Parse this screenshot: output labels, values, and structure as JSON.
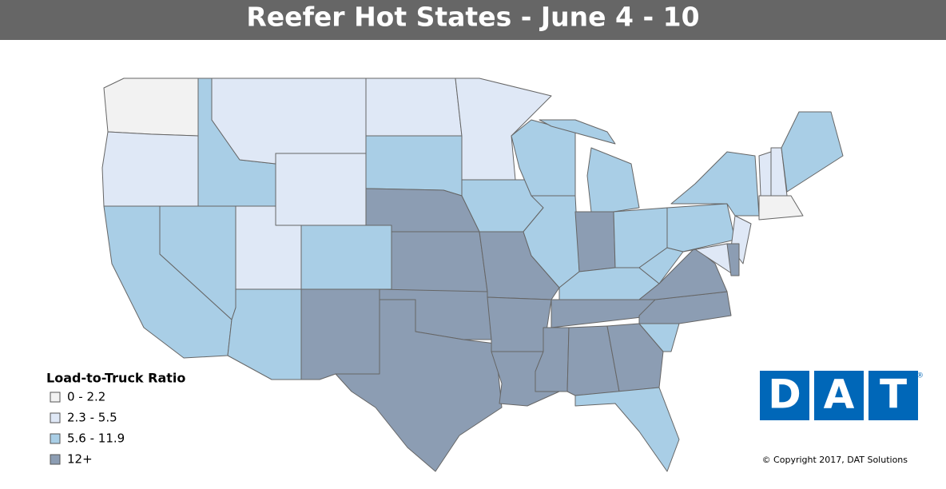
{
  "header": {
    "title": "Reefer Hot States - June 4 - 10"
  },
  "legend": {
    "title": "Load-to-Truck Ratio",
    "items": [
      {
        "label": "0 - 2.2",
        "color": "#f2f2f2"
      },
      {
        "label": "2.3 - 5.5",
        "color": "#dfe8f6"
      },
      {
        "label": "5.6 - 11.9",
        "color": "#a9cee6"
      },
      {
        "label": "12+",
        "color": "#8c9db3"
      }
    ]
  },
  "logo": {
    "letters": [
      "D",
      "A",
      "T"
    ],
    "mark": "®"
  },
  "footer": {
    "copyright": "© Copyright 2017, DAT Solutions"
  }
}
